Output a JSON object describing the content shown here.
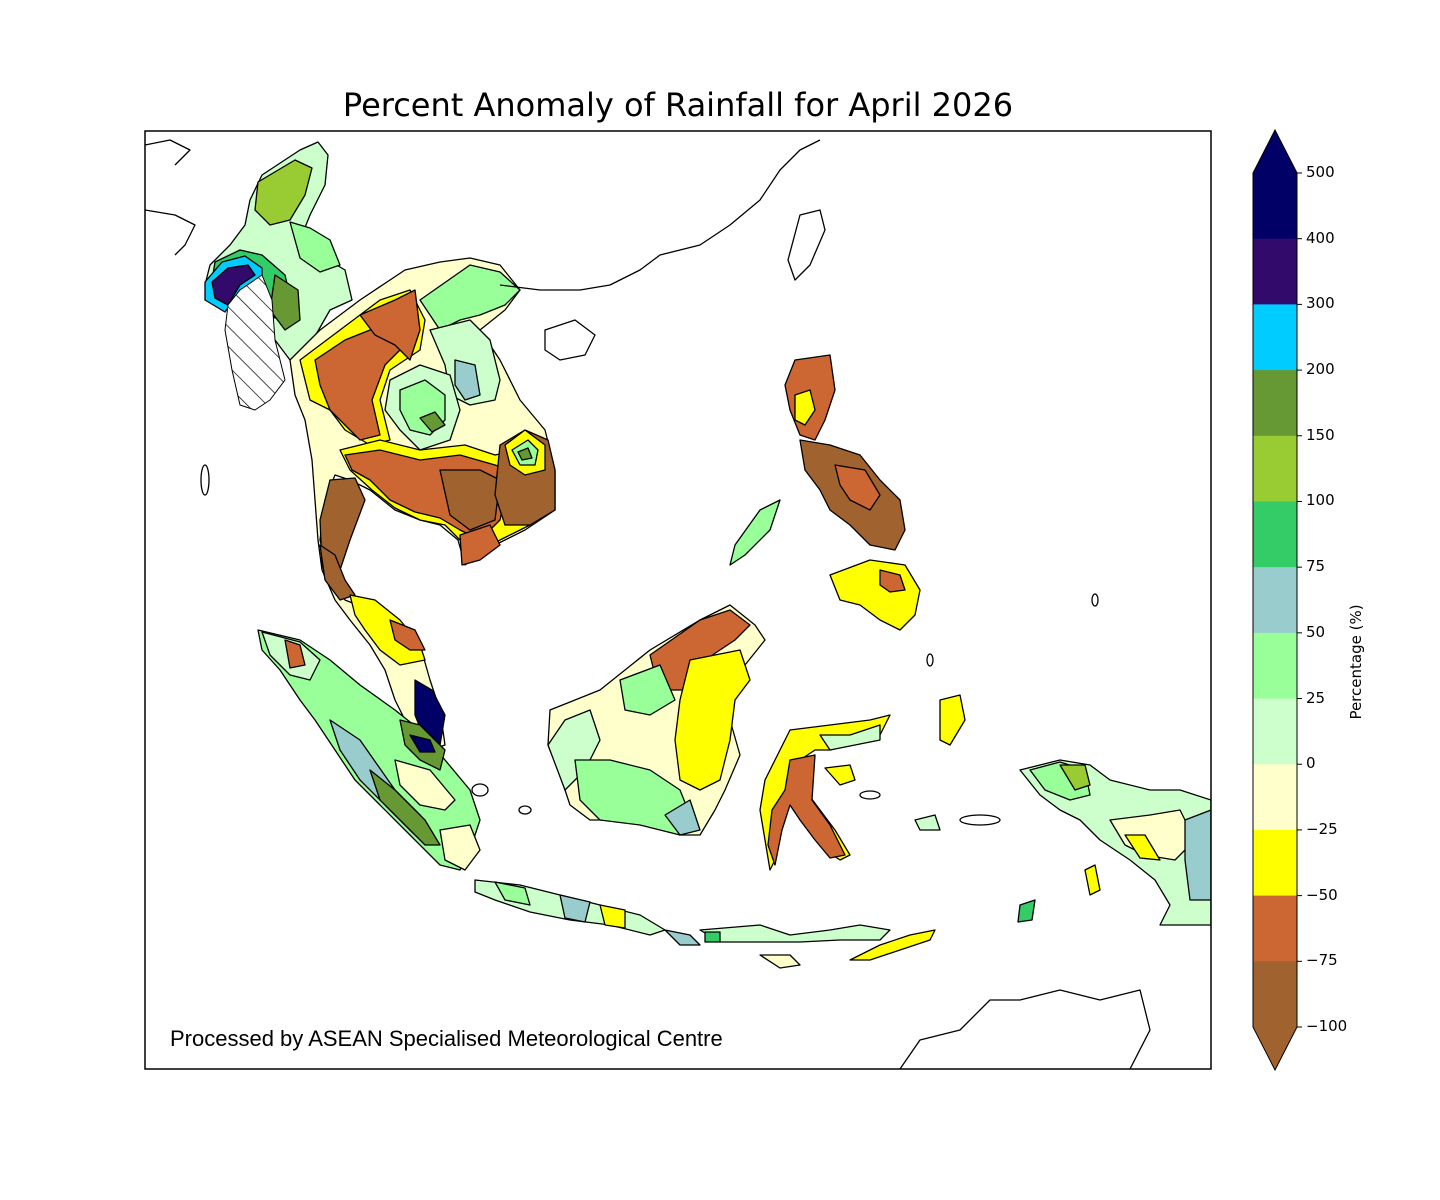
{
  "title": "Percent Anomaly of Rainfall for April 2026",
  "credit": "Processed by ASEAN Specialised Meteorological Centre",
  "colorbar": {
    "label": "Percentage (%)",
    "ticks": [
      "500",
      "400",
      "300",
      "200",
      "150",
      "100",
      "75",
      "50",
      "25",
      "0",
      "−25",
      "−50",
      "−75",
      "−100"
    ],
    "bins_top_to_bottom": [
      {
        "range": "400 to 500",
        "color": "#000066"
      },
      {
        "range": "300 to 400",
        "color": "#310a6b"
      },
      {
        "range": "200 to 300",
        "color": "#00ccff"
      },
      {
        "range": "150 to 200",
        "color": "#669933"
      },
      {
        "range": "100 to 150",
        "color": "#99cc33"
      },
      {
        "range": "75 to 100",
        "color": "#33cc66"
      },
      {
        "range": "50 to 75",
        "color": "#99cccc"
      },
      {
        "range": "25 to 50",
        "color": "#99ff99"
      },
      {
        "range": "0 to 25",
        "color": "#ccffcc"
      },
      {
        "range": "-25 to 0",
        "color": "#ffffcc"
      },
      {
        "range": "-50 to -25",
        "color": "#ffff00"
      },
      {
        "range": "-75 to -50",
        "color": "#cc6633"
      },
      {
        "range": "-100 to -75",
        "color": "#a0632f"
      }
    ],
    "extend_max_color": "#000066",
    "extend_min_color": "#a0632f"
  },
  "legend_note": "hatched area indicates no data"
}
